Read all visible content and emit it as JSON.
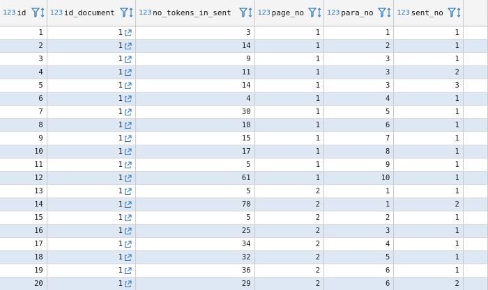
{
  "columns": [
    {
      "type": "123",
      "name": "id"
    },
    {
      "type": "123",
      "name": "id_document"
    },
    {
      "type": "123",
      "name": "no_tokens_in_sent"
    },
    {
      "type": "123",
      "name": "page_no"
    },
    {
      "type": "123",
      "name": "para_no"
    },
    {
      "type": "123",
      "name": "sent_no"
    }
  ],
  "rows": [
    {
      "id": "1",
      "id_document": "1",
      "no_tokens_in_sent": "3",
      "page_no": "1",
      "para_no": "1",
      "sent_no": "1"
    },
    {
      "id": "2",
      "id_document": "1",
      "no_tokens_in_sent": "14",
      "page_no": "1",
      "para_no": "2",
      "sent_no": "1"
    },
    {
      "id": "3",
      "id_document": "1",
      "no_tokens_in_sent": "9",
      "page_no": "1",
      "para_no": "3",
      "sent_no": "1"
    },
    {
      "id": "4",
      "id_document": "1",
      "no_tokens_in_sent": "11",
      "page_no": "1",
      "para_no": "3",
      "sent_no": "2"
    },
    {
      "id": "5",
      "id_document": "1",
      "no_tokens_in_sent": "14",
      "page_no": "1",
      "para_no": "3",
      "sent_no": "3"
    },
    {
      "id": "6",
      "id_document": "1",
      "no_tokens_in_sent": "4",
      "page_no": "1",
      "para_no": "4",
      "sent_no": "1"
    },
    {
      "id": "7",
      "id_document": "1",
      "no_tokens_in_sent": "30",
      "page_no": "1",
      "para_no": "5",
      "sent_no": "1"
    },
    {
      "id": "8",
      "id_document": "1",
      "no_tokens_in_sent": "18",
      "page_no": "1",
      "para_no": "6",
      "sent_no": "1"
    },
    {
      "id": "9",
      "id_document": "1",
      "no_tokens_in_sent": "15",
      "page_no": "1",
      "para_no": "7",
      "sent_no": "1"
    },
    {
      "id": "10",
      "id_document": "1",
      "no_tokens_in_sent": "17",
      "page_no": "1",
      "para_no": "8",
      "sent_no": "1"
    },
    {
      "id": "11",
      "id_document": "1",
      "no_tokens_in_sent": "5",
      "page_no": "1",
      "para_no": "9",
      "sent_no": "1"
    },
    {
      "id": "12",
      "id_document": "1",
      "no_tokens_in_sent": "61",
      "page_no": "1",
      "para_no": "10",
      "sent_no": "1"
    },
    {
      "id": "13",
      "id_document": "1",
      "no_tokens_in_sent": "5",
      "page_no": "2",
      "para_no": "1",
      "sent_no": "1"
    },
    {
      "id": "14",
      "id_document": "1",
      "no_tokens_in_sent": "70",
      "page_no": "2",
      "para_no": "1",
      "sent_no": "2"
    },
    {
      "id": "15",
      "id_document": "1",
      "no_tokens_in_sent": "5",
      "page_no": "2",
      "para_no": "2",
      "sent_no": "1"
    },
    {
      "id": "16",
      "id_document": "1",
      "no_tokens_in_sent": "25",
      "page_no": "2",
      "para_no": "3",
      "sent_no": "1"
    },
    {
      "id": "17",
      "id_document": "1",
      "no_tokens_in_sent": "34",
      "page_no": "2",
      "para_no": "4",
      "sent_no": "1"
    },
    {
      "id": "18",
      "id_document": "1",
      "no_tokens_in_sent": "32",
      "page_no": "2",
      "para_no": "5",
      "sent_no": "1"
    },
    {
      "id": "19",
      "id_document": "1",
      "no_tokens_in_sent": "36",
      "page_no": "2",
      "para_no": "6",
      "sent_no": "1"
    },
    {
      "id": "20",
      "id_document": "1",
      "no_tokens_in_sent": "29",
      "page_no": "2",
      "para_no": "6",
      "sent_no": "2"
    }
  ],
  "icons": {
    "filter": "filter-icon",
    "sort": "sort-icon",
    "link": "external-link-icon",
    "pk": "primary-key-icon"
  },
  "colors": {
    "accent": "#2b78c2",
    "row_alt": "#dde8f4",
    "header_bg": "#f4f4f4"
  }
}
